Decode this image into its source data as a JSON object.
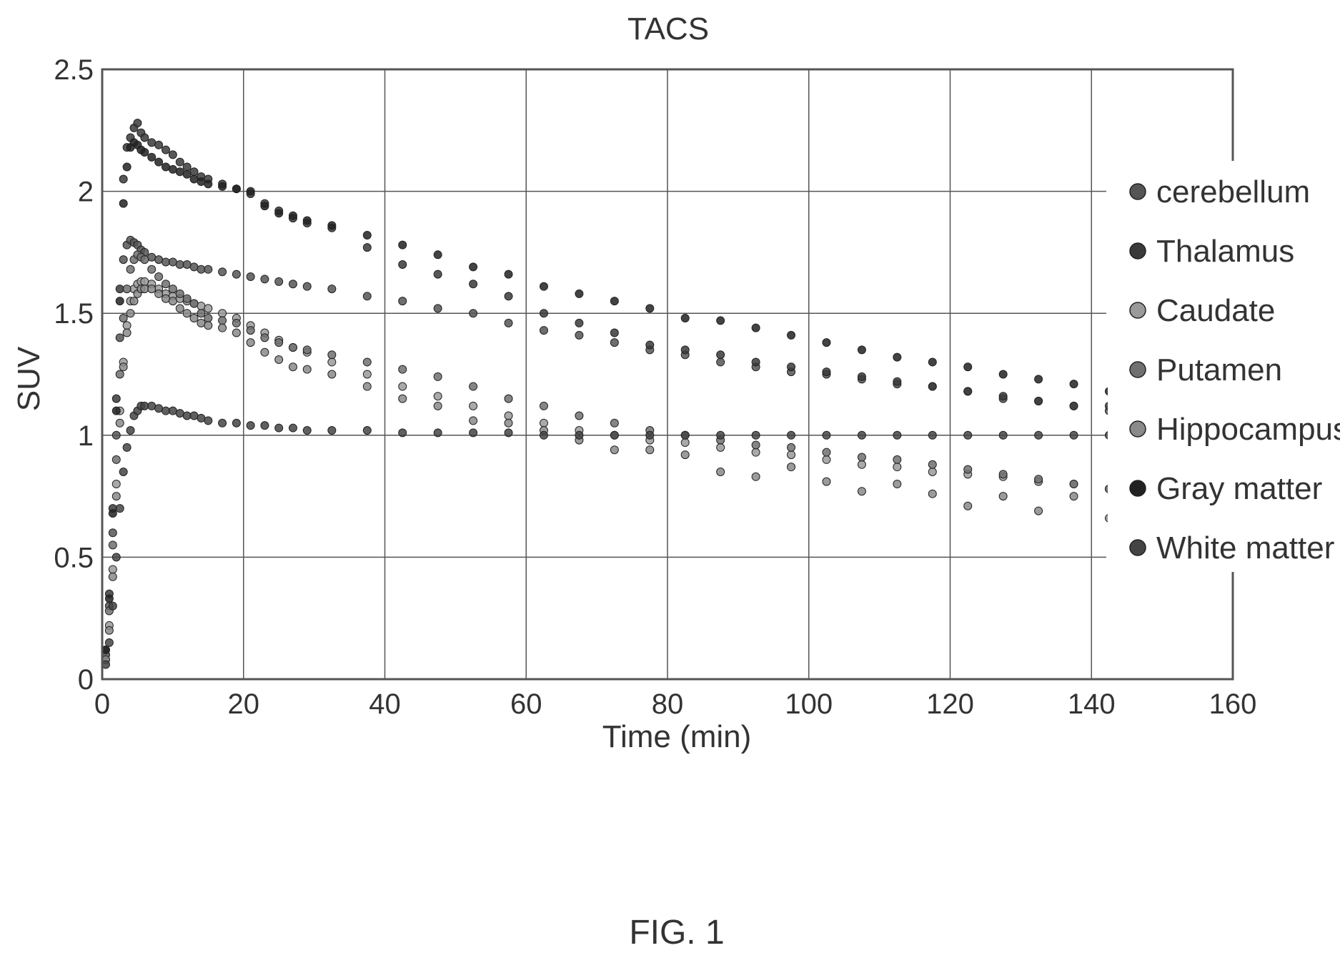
{
  "figure_caption": "FIG. 1",
  "chart_data": {
    "type": "scatter",
    "title": "TACS",
    "xlabel": "Time (min)",
    "ylabel": "SUV",
    "xlim": [
      0,
      160
    ],
    "ylim": [
      0,
      2.5
    ],
    "xticks": [
      "0",
      "20",
      "40",
      "60",
      "80",
      "100",
      "120",
      "140",
      "160"
    ],
    "yticks": [
      "0",
      "0.5",
      "1",
      "1.5",
      "2",
      "2.5"
    ],
    "grid": true,
    "legend_position": "right",
    "colors": {
      "cerebellum": "#555555",
      "Thalamus": "#3a3a3a",
      "Caudate": "#9a9a9a",
      "Putamen": "#707070",
      "Hippocampus": "#8a8a8a",
      "Gray matter": "#222222",
      "White matter": "#444444"
    },
    "series": [
      {
        "name": "cerebellum",
        "x": [
          0.5,
          1,
          1.5,
          2,
          2.5,
          3,
          3.5,
          4,
          4.5,
          5,
          5.5,
          6,
          7,
          8,
          9,
          10,
          11,
          12,
          13,
          14,
          15,
          17,
          19,
          21,
          23,
          25,
          27,
          29,
          32.5,
          37.5,
          42.5,
          47.5,
          52.5,
          57.5,
          62.5,
          67.5,
          72.5,
          77.5,
          82.5,
          87.5,
          92.5,
          97.5,
          102.5,
          107.5,
          112.5,
          117.5,
          122.5,
          127.5,
          132.5,
          137.5,
          142.5
        ],
        "y": [
          0.1,
          0.3,
          0.6,
          1.0,
          1.4,
          1.72,
          1.78,
          1.8,
          1.79,
          1.78,
          1.76,
          1.75,
          1.73,
          1.72,
          1.71,
          1.71,
          1.7,
          1.7,
          1.69,
          1.68,
          1.68,
          1.67,
          1.66,
          1.65,
          1.64,
          1.63,
          1.62,
          1.61,
          1.6,
          1.57,
          1.55,
          1.52,
          1.5,
          1.46,
          1.43,
          1.41,
          1.38,
          1.35,
          1.33,
          1.3,
          1.28,
          1.26,
          1.25,
          1.23,
          1.21,
          1.2,
          1.18,
          1.15,
          1.14,
          1.12,
          1.1
        ]
      },
      {
        "name": "Thalamus",
        "x": [
          0.5,
          1,
          1.5,
          2,
          2.5,
          3,
          3.5,
          4,
          4.5,
          5,
          5.5,
          6,
          7,
          8,
          9,
          10,
          11,
          12,
          13,
          14,
          15,
          17,
          19,
          21,
          23,
          25,
          27,
          29,
          32.5,
          37.5,
          42.5,
          47.5,
          52.5,
          57.5,
          62.5,
          67.5,
          72.5,
          77.5,
          82.5,
          87.5,
          92.5,
          97.5,
          102.5,
          107.5,
          112.5,
          117.5,
          122.5,
          127.5,
          132.5,
          137.5,
          142.5
        ],
        "y": [
          0.12,
          0.35,
          0.7,
          1.15,
          1.6,
          2.05,
          2.18,
          2.22,
          2.26,
          2.28,
          2.24,
          2.22,
          2.2,
          2.19,
          2.17,
          2.15,
          2.12,
          2.1,
          2.08,
          2.06,
          2.05,
          2.03,
          2.01,
          1.99,
          1.95,
          1.92,
          1.89,
          1.87,
          1.85,
          1.77,
          1.7,
          1.66,
          1.62,
          1.57,
          1.5,
          1.46,
          1.42,
          1.37,
          1.35,
          1.33,
          1.3,
          1.28,
          1.26,
          1.24,
          1.22,
          1.2,
          1.18,
          1.16,
          1.14,
          1.12,
          1.12
        ]
      },
      {
        "name": "Caudate",
        "x": [
          0.5,
          1,
          1.5,
          2,
          2.5,
          3,
          3.5,
          4,
          4.5,
          5,
          5.5,
          6,
          7,
          8,
          9,
          10,
          11,
          12,
          13,
          14,
          15,
          17,
          19,
          21,
          23,
          25,
          27,
          29,
          32.5,
          37.5,
          42.5,
          47.5,
          52.5,
          57.5,
          62.5,
          67.5,
          72.5,
          77.5,
          82.5,
          87.5,
          92.5,
          97.5,
          102.5,
          107.5,
          112.5,
          117.5,
          122.5,
          127.5,
          132.5,
          137.5,
          142.5
        ],
        "y": [
          0.08,
          0.22,
          0.45,
          0.8,
          1.1,
          1.3,
          1.45,
          1.55,
          1.6,
          1.62,
          1.63,
          1.63,
          1.62,
          1.6,
          1.58,
          1.57,
          1.56,
          1.55,
          1.54,
          1.53,
          1.52,
          1.5,
          1.48,
          1.45,
          1.42,
          1.39,
          1.36,
          1.34,
          1.3,
          1.25,
          1.2,
          1.16,
          1.12,
          1.08,
          1.05,
          1.02,
          1.0,
          0.98,
          0.97,
          0.95,
          0.93,
          0.92,
          0.9,
          0.88,
          0.87,
          0.85,
          0.84,
          0.83,
          0.81,
          0.8,
          0.78
        ]
      },
      {
        "name": "Putamen",
        "x": [
          0.5,
          1,
          1.5,
          2,
          2.5,
          3,
          3.5,
          4,
          4.5,
          5,
          5.5,
          6,
          7,
          8,
          9,
          10,
          11,
          12,
          13,
          14,
          15,
          17,
          19,
          21,
          23,
          25,
          27,
          29,
          32.5,
          37.5,
          42.5,
          47.5,
          52.5,
          57.5,
          62.5,
          67.5,
          72.5,
          77.5,
          82.5,
          87.5,
          92.5,
          97.5,
          102.5,
          107.5,
          112.5,
          117.5,
          122.5,
          127.5,
          132.5,
          137.5,
          142.5
        ],
        "y": [
          0.1,
          0.28,
          0.55,
          0.9,
          1.25,
          1.48,
          1.6,
          1.68,
          1.72,
          1.74,
          1.73,
          1.72,
          1.68,
          1.65,
          1.62,
          1.6,
          1.58,
          1.56,
          1.54,
          1.5,
          1.48,
          1.47,
          1.46,
          1.43,
          1.4,
          1.38,
          1.36,
          1.35,
          1.33,
          1.3,
          1.27,
          1.24,
          1.2,
          1.15,
          1.12,
          1.08,
          1.05,
          1.02,
          1.0,
          0.98,
          0.96,
          0.95,
          0.93,
          0.91,
          0.9,
          0.88,
          0.86,
          0.84,
          0.82,
          0.8,
          0.78
        ]
      },
      {
        "name": "Hippocampus",
        "x": [
          0.5,
          1,
          1.5,
          2,
          2.5,
          3,
          3.5,
          4,
          4.5,
          5,
          5.5,
          6,
          7,
          8,
          9,
          10,
          11,
          12,
          13,
          14,
          15,
          17,
          19,
          21,
          23,
          25,
          27,
          29,
          32.5,
          37.5,
          42.5,
          47.5,
          52.5,
          57.5,
          62.5,
          67.5,
          72.5,
          77.5,
          82.5,
          87.5,
          92.5,
          97.5,
          102.5,
          107.5,
          112.5,
          117.5,
          122.5,
          127.5,
          132.5,
          137.5,
          142.5
        ],
        "y": [
          0.08,
          0.2,
          0.42,
          0.75,
          1.05,
          1.28,
          1.42,
          1.5,
          1.55,
          1.58,
          1.6,
          1.6,
          1.6,
          1.58,
          1.56,
          1.55,
          1.52,
          1.5,
          1.48,
          1.46,
          1.45,
          1.44,
          1.42,
          1.38,
          1.34,
          1.31,
          1.28,
          1.27,
          1.25,
          1.2,
          1.15,
          1.12,
          1.06,
          1.05,
          1.02,
          0.98,
          0.94,
          0.94,
          0.92,
          0.85,
          0.83,
          0.87,
          0.81,
          0.77,
          0.8,
          0.76,
          0.71,
          0.75,
          0.69,
          0.75,
          0.66
        ]
      },
      {
        "name": "Gray matter",
        "x": [
          0.5,
          1,
          1.5,
          2,
          2.5,
          3,
          3.5,
          4,
          4.5,
          5,
          5.5,
          6,
          7,
          8,
          9,
          10,
          11,
          12,
          13,
          14,
          15,
          17,
          19,
          21,
          23,
          25,
          27,
          29,
          32.5,
          37.5,
          42.5,
          47.5,
          52.5,
          57.5,
          62.5,
          67.5,
          72.5,
          77.5,
          82.5,
          87.5,
          92.5,
          97.5,
          102.5,
          107.5,
          112.5,
          117.5,
          122.5,
          127.5,
          132.5,
          137.5,
          142.5
        ],
        "y": [
          0.12,
          0.33,
          0.68,
          1.1,
          1.55,
          1.95,
          2.1,
          2.18,
          2.2,
          2.19,
          2.17,
          2.16,
          2.14,
          2.12,
          2.1,
          2.09,
          2.08,
          2.07,
          2.05,
          2.04,
          2.03,
          2.02,
          2.01,
          2.0,
          1.94,
          1.91,
          1.9,
          1.88,
          1.86,
          1.82,
          1.78,
          1.74,
          1.69,
          1.66,
          1.61,
          1.58,
          1.55,
          1.52,
          1.48,
          1.47,
          1.44,
          1.41,
          1.38,
          1.35,
          1.32,
          1.3,
          1.28,
          1.25,
          1.23,
          1.21,
          1.18
        ]
      },
      {
        "name": "White matter",
        "x": [
          0.5,
          1,
          1.5,
          2,
          2.5,
          3,
          3.5,
          4,
          4.5,
          5,
          5.5,
          6,
          7,
          8,
          9,
          10,
          11,
          12,
          13,
          14,
          15,
          17,
          19,
          21,
          23,
          25,
          27,
          29,
          32.5,
          37.5,
          42.5,
          47.5,
          52.5,
          57.5,
          62.5,
          67.5,
          72.5,
          77.5,
          82.5,
          87.5,
          92.5,
          97.5,
          102.5,
          107.5,
          112.5,
          117.5,
          122.5,
          127.5,
          132.5,
          137.5,
          142.5
        ],
        "y": [
          0.06,
          0.15,
          0.3,
          0.5,
          0.7,
          0.85,
          0.95,
          1.02,
          1.08,
          1.1,
          1.12,
          1.12,
          1.12,
          1.11,
          1.1,
          1.1,
          1.09,
          1.08,
          1.08,
          1.07,
          1.06,
          1.05,
          1.05,
          1.04,
          1.04,
          1.03,
          1.03,
          1.02,
          1.02,
          1.02,
          1.01,
          1.01,
          1.01,
          1.01,
          1.0,
          1.0,
          1.0,
          1.0,
          1.0,
          1.0,
          1.0,
          1.0,
          1.0,
          1.0,
          1.0,
          1.0,
          1.0,
          1.0,
          1.0,
          1.0,
          1.0
        ]
      }
    ]
  }
}
